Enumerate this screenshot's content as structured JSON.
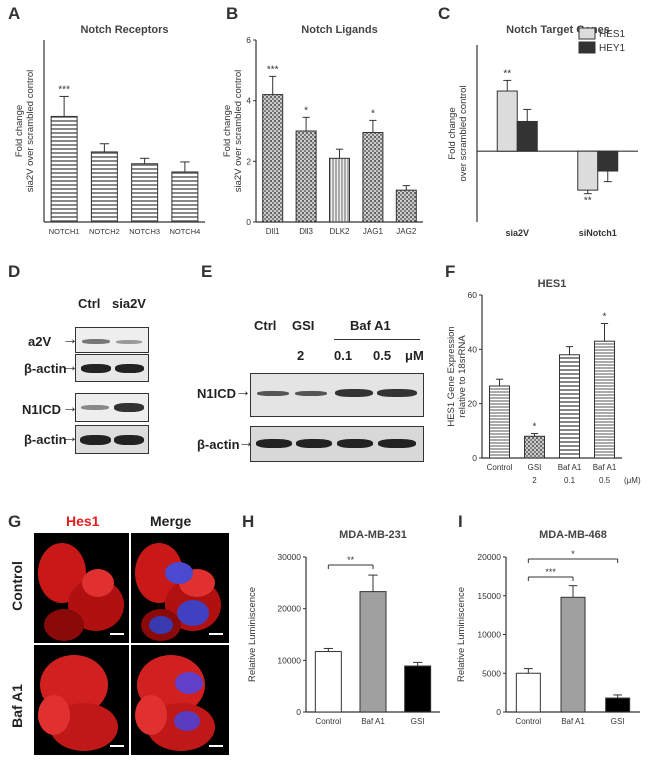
{
  "panels": {
    "A": "A",
    "B": "B",
    "C": "C",
    "D": "D",
    "E": "E",
    "F": "F",
    "G": "G",
    "H": "H",
    "I": "I"
  },
  "colors": {
    "bar_light": "#dcdcdc",
    "bar_dark": "#333333",
    "axis": "#333333",
    "hes_red": "#e02020"
  },
  "chart_data": [
    {
      "id": "A",
      "type": "bar",
      "title": "Notch Receptors",
      "ylabel": "Fold change\nsia2V over scrambled control",
      "categories": [
        "NOTCH1",
        "NOTCH2",
        "NOTCH3",
        "NOTCH4"
      ],
      "values": [
        5.8,
        3.85,
        3.2,
        2.75
      ],
      "errors": [
        1.1,
        0.45,
        0.3,
        0.55
      ],
      "annotations": [
        "***",
        "",
        "",
        ""
      ],
      "ylim": [
        0,
        10
      ],
      "yticks": [],
      "pattern": "hlines"
    },
    {
      "id": "B",
      "type": "bar",
      "title": "Notch Ligands",
      "ylabel": "Fold change\nsia2V over scrambled control",
      "categories": [
        "Dll1",
        "Dll3",
        "DLK2",
        "JAG1",
        "JAG2"
      ],
      "values": [
        4.2,
        3.0,
        2.1,
        2.95,
        1.05
      ],
      "errors": [
        0.6,
        0.45,
        0.3,
        0.4,
        0.15
      ],
      "annotations": [
        "***",
        "*",
        "",
        "*",
        ""
      ],
      "ylim": [
        0,
        6
      ],
      "yticks": [
        "0",
        "2",
        "4",
        "6"
      ],
      "pattern": "dots"
    },
    {
      "id": "C",
      "type": "bar",
      "title": "Notch Target Genes",
      "ylabel": "Fold change\nover scrambled control",
      "categories": [
        "sia2V",
        "siNotch1"
      ],
      "series": [
        {
          "name": "HES1",
          "values": [
            1.85,
            0.45
          ],
          "errors": [
            0.15,
            0.05
          ],
          "annotations": [
            "**",
            "**"
          ]
        },
        {
          "name": "HEY1",
          "values": [
            1.42,
            0.72
          ],
          "errors": [
            0.17,
            0.15
          ],
          "annotations": [
            "",
            ""
          ]
        }
      ],
      "ylim": [
        0,
        2.5
      ],
      "baseline": 1.0,
      "yticks": []
    },
    {
      "id": "F",
      "type": "bar",
      "title": "HES1",
      "ylabel": "HES1 Gene Expression\nrelative to 18srRNA",
      "categories": [
        "Control",
        "GSI",
        "Baf A1",
        "Baf A1"
      ],
      "sublabels": [
        "",
        "2",
        "0.1",
        "0.5"
      ],
      "unit_label": "(μM)",
      "values": [
        26.5,
        8.0,
        38.0,
        43.0
      ],
      "errors": [
        2.5,
        1.0,
        3.0,
        6.5
      ],
      "annotations": [
        "",
        "*",
        "",
        "*"
      ],
      "ylim": [
        0,
        60
      ],
      "yticks": [
        "0",
        "20",
        "40",
        "60"
      ]
    },
    {
      "id": "H",
      "type": "bar",
      "title": "MDA-MB-231",
      "ylabel": "Relative Luminiscence",
      "categories": [
        "Control",
        "Baf A1",
        "GSI"
      ],
      "values": [
        11700,
        23300,
        8900
      ],
      "errors": [
        600,
        3200,
        700
      ],
      "colors": [
        "#ffffff",
        "#a0a0a0",
        "#000000"
      ],
      "ylim": [
        0,
        30000
      ],
      "yticks": [
        "0",
        "10000",
        "20000",
        "30000"
      ],
      "brackets": [
        {
          "from": 0,
          "to": 1,
          "label": "**"
        }
      ]
    },
    {
      "id": "I",
      "type": "bar",
      "title": "MDA-MB-468",
      "ylabel": "Relative Luminiscence",
      "categories": [
        "Control",
        "Baf A1",
        "GSI"
      ],
      "values": [
        5000,
        14800,
        1800
      ],
      "errors": [
        600,
        1500,
        400
      ],
      "colors": [
        "#ffffff",
        "#a0a0a0",
        "#000000"
      ],
      "ylim": [
        0,
        20000
      ],
      "yticks": [
        "0",
        "5000",
        "10000",
        "15000",
        "20000"
      ],
      "brackets": [
        {
          "from": 0,
          "to": 1,
          "label": "***"
        },
        {
          "from": 0,
          "to": 2,
          "label": "*"
        }
      ]
    }
  ],
  "blot_D": {
    "lanes": [
      "Ctrl",
      "sia2V"
    ],
    "rows": [
      "a2V",
      "β-actin",
      "N1ICD",
      "β-actin"
    ]
  },
  "blot_E": {
    "lanes": [
      "Ctrl",
      "GSI",
      "Baf A1"
    ],
    "conc": [
      "2",
      "0.1",
      "0.5",
      "μM"
    ],
    "rows": [
      "N1ICD",
      "β-actin"
    ]
  },
  "micro_G": {
    "cols": [
      "Hes1",
      "Merge"
    ],
    "rows": [
      "Control",
      "Baf A1"
    ]
  }
}
